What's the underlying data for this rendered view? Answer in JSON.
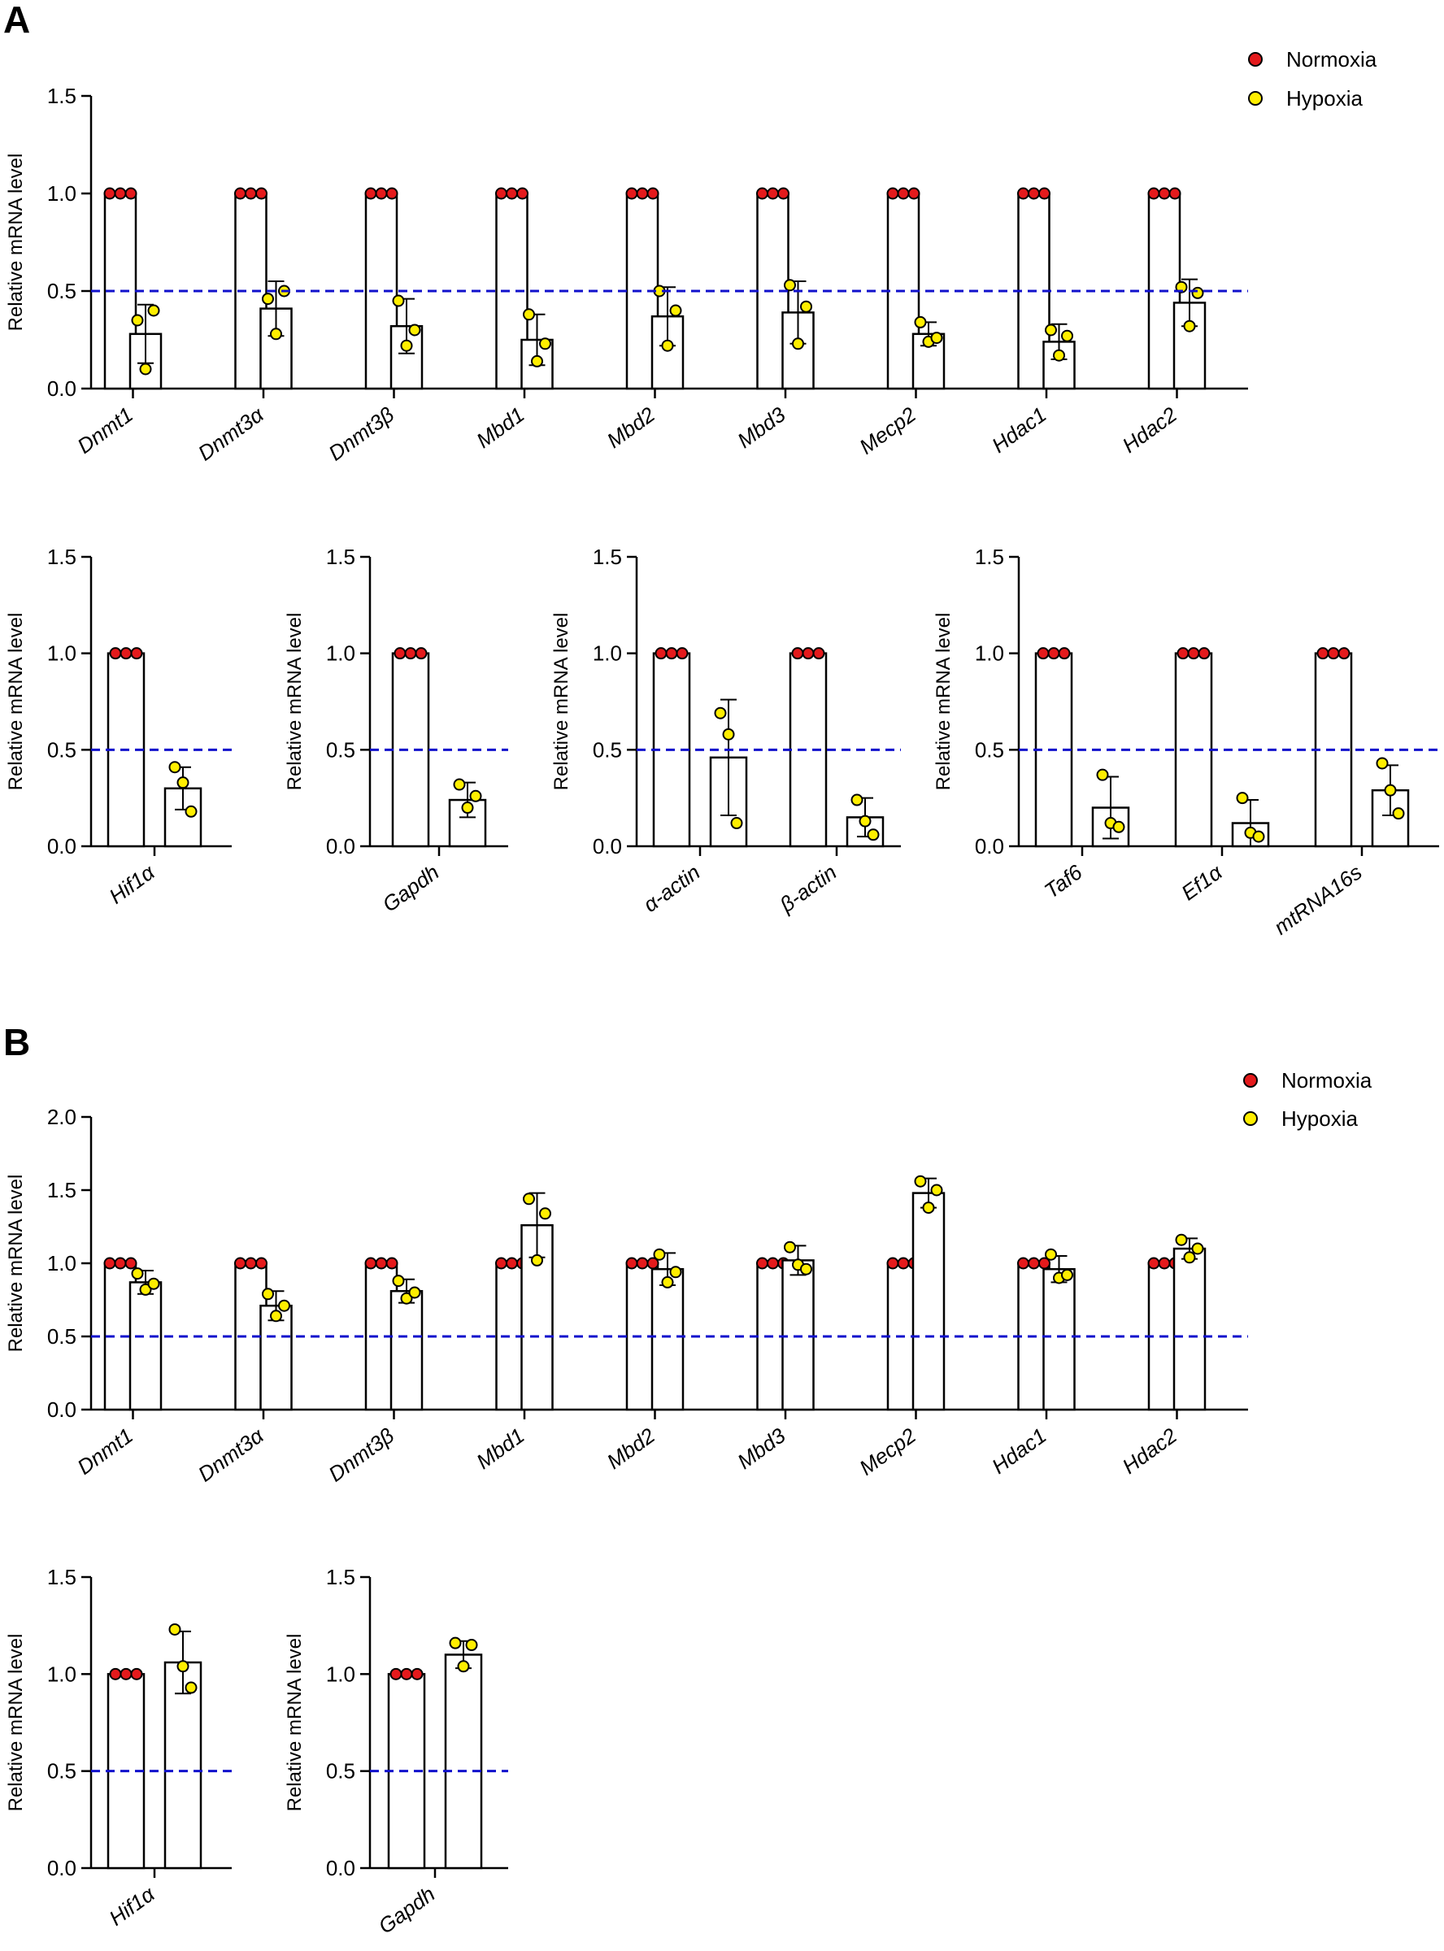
{
  "panels": {
    "a": "A",
    "b": "B"
  },
  "legend": [
    {
      "label": "Normoxia",
      "color": "#e41a1c"
    },
    {
      "label": "Hypoxia",
      "color": "#ffee00"
    }
  ],
  "colors": {
    "reference_line": "#1010cc",
    "bar_fill": "#ffffff",
    "bar_stroke": "#000000"
  },
  "chart_data": [
    {
      "id": "A-top",
      "type": "bar",
      "panel": "A",
      "ylabel": "Relative mRNA level",
      "ylim": [
        0,
        1.5
      ],
      "yticks": [
        "0.0",
        "0.5",
        "1.0",
        "1.5"
      ],
      "reference_line": 0.5,
      "categories": [
        "Dnmt1",
        "Dnmt3α",
        "Dnmt3β",
        "Mbd1",
        "Mbd2",
        "Mbd3",
        "Mecp2",
        "Hdac1",
        "Hdac2"
      ],
      "series": [
        {
          "name": "Normoxia",
          "values": [
            1,
            1,
            1,
            1,
            1,
            1,
            1,
            1,
            1
          ],
          "sd": [
            0,
            0,
            0,
            0,
            0,
            0,
            0,
            0,
            0
          ],
          "points": [
            [
              1,
              1,
              1
            ],
            [
              1,
              1,
              1
            ],
            [
              1,
              1,
              1
            ],
            [
              1,
              1,
              1
            ],
            [
              1,
              1,
              1
            ],
            [
              1,
              1,
              1
            ],
            [
              1,
              1,
              1
            ],
            [
              1,
              1,
              1
            ],
            [
              1,
              1,
              1
            ]
          ]
        },
        {
          "name": "Hypoxia",
          "values": [
            0.28,
            0.41,
            0.32,
            0.25,
            0.37,
            0.39,
            0.28,
            0.24,
            0.44
          ],
          "sd": [
            0.15,
            0.14,
            0.14,
            0.13,
            0.15,
            0.16,
            0.06,
            0.09,
            0.12
          ],
          "points": [
            [
              0.35,
              0.1,
              0.4
            ],
            [
              0.46,
              0.28,
              0.5
            ],
            [
              0.45,
              0.22,
              0.3
            ],
            [
              0.38,
              0.14,
              0.23
            ],
            [
              0.5,
              0.22,
              0.4
            ],
            [
              0.53,
              0.23,
              0.42
            ],
            [
              0.34,
              0.24,
              0.26
            ],
            [
              0.3,
              0.17,
              0.27
            ],
            [
              0.52,
              0.32,
              0.49
            ]
          ]
        }
      ]
    },
    {
      "id": "A-hif",
      "type": "bar",
      "panel": "A",
      "ylabel": "Relative mRNA level",
      "ylim": [
        0,
        1.5
      ],
      "yticks": [
        "0.0",
        "0.5",
        "1.0",
        "1.5"
      ],
      "reference_line": 0.5,
      "categories": [
        "Hif1α"
      ],
      "series": [
        {
          "name": "Normoxia",
          "values": [
            1
          ],
          "sd": [
            0
          ],
          "points": [
            [
              1,
              1,
              1
            ]
          ]
        },
        {
          "name": "Hypoxia",
          "values": [
            0.3
          ],
          "sd": [
            0.11
          ],
          "points": [
            [
              0.41,
              0.33,
              0.18
            ]
          ]
        }
      ]
    },
    {
      "id": "A-gapdh",
      "type": "bar",
      "panel": "A",
      "ylabel": "Relative mRNA level",
      "ylim": [
        0,
        1.5
      ],
      "yticks": [
        "0.0",
        "0.5",
        "1.0",
        "1.5"
      ],
      "reference_line": 0.5,
      "categories": [
        "Gapdh"
      ],
      "series": [
        {
          "name": "Normoxia",
          "values": [
            1
          ],
          "sd": [
            0
          ],
          "points": [
            [
              1,
              1,
              1
            ]
          ]
        },
        {
          "name": "Hypoxia",
          "values": [
            0.24
          ],
          "sd": [
            0.09
          ],
          "points": [
            [
              0.32,
              0.2,
              0.26
            ]
          ]
        }
      ]
    },
    {
      "id": "A-actin",
      "type": "bar",
      "panel": "A",
      "ylabel": "Relative mRNA level",
      "ylim": [
        0,
        1.5
      ],
      "yticks": [
        "0.0",
        "0.5",
        "1.0",
        "1.5"
      ],
      "reference_line": 0.5,
      "categories": [
        "α-actin",
        "β-actin"
      ],
      "series": [
        {
          "name": "Normoxia",
          "values": [
            1,
            1
          ],
          "sd": [
            0,
            0
          ],
          "points": [
            [
              1,
              1,
              1
            ],
            [
              1,
              1,
              1
            ]
          ]
        },
        {
          "name": "Hypoxia",
          "values": [
            0.46,
            0.15
          ],
          "sd": [
            0.3,
            0.1
          ],
          "points": [
            [
              0.69,
              0.58,
              0.12
            ],
            [
              0.24,
              0.13,
              0.06
            ]
          ]
        }
      ]
    },
    {
      "id": "A-ref",
      "type": "bar",
      "panel": "A",
      "ylabel": "Relative mRNA level",
      "ylim": [
        0,
        1.5
      ],
      "yticks": [
        "0.0",
        "0.5",
        "1.0",
        "1.5"
      ],
      "reference_line": 0.5,
      "categories": [
        "Taf6",
        "Ef1α",
        "mtRNA16s"
      ],
      "series": [
        {
          "name": "Normoxia",
          "values": [
            1,
            1,
            1
          ],
          "sd": [
            0,
            0,
            0
          ],
          "points": [
            [
              1,
              1,
              1
            ],
            [
              1,
              1,
              1
            ],
            [
              1,
              1,
              1
            ]
          ]
        },
        {
          "name": "Hypoxia",
          "values": [
            0.2,
            0.12,
            0.29
          ],
          "sd": [
            0.16,
            0.12,
            0.13
          ],
          "points": [
            [
              0.37,
              0.12,
              0.1
            ],
            [
              0.25,
              0.07,
              0.05
            ],
            [
              0.43,
              0.29,
              0.17
            ]
          ]
        }
      ]
    },
    {
      "id": "B-top",
      "type": "bar",
      "panel": "B",
      "ylabel": "Relative mRNA level",
      "ylim": [
        0,
        2.0
      ],
      "yticks": [
        "0.0",
        "0.5",
        "1.0",
        "1.5",
        "2.0"
      ],
      "reference_line": 0.5,
      "categories": [
        "Dnmt1",
        "Dnmt3α",
        "Dnmt3β",
        "Mbd1",
        "Mbd2",
        "Mbd3",
        "Mecp2",
        "Hdac1",
        "Hdac2"
      ],
      "series": [
        {
          "name": "Normoxia",
          "values": [
            1,
            1,
            1,
            1,
            1,
            1,
            1,
            1,
            1
          ],
          "sd": [
            0,
            0,
            0,
            0,
            0,
            0,
            0,
            0,
            0
          ],
          "points": [
            [
              1,
              1,
              1
            ],
            [
              1,
              1,
              1
            ],
            [
              1,
              1,
              1
            ],
            [
              1,
              1,
              1
            ],
            [
              1,
              1,
              1
            ],
            [
              1,
              1,
              1
            ],
            [
              1,
              1,
              1
            ],
            [
              1,
              1,
              1
            ],
            [
              1,
              1,
              1
            ]
          ]
        },
        {
          "name": "Hypoxia",
          "values": [
            0.87,
            0.71,
            0.81,
            1.26,
            0.96,
            1.02,
            1.48,
            0.96,
            1.1
          ],
          "sd": [
            0.08,
            0.1,
            0.08,
            0.22,
            0.11,
            0.1,
            0.1,
            0.09,
            0.07
          ],
          "points": [
            [
              0.93,
              0.82,
              0.86
            ],
            [
              0.79,
              0.64,
              0.71
            ],
            [
              0.88,
              0.76,
              0.8
            ],
            [
              1.44,
              1.02,
              1.34
            ],
            [
              1.06,
              0.87,
              0.94
            ],
            [
              1.11,
              0.99,
              0.96
            ],
            [
              1.56,
              1.38,
              1.5
            ],
            [
              1.06,
              0.9,
              0.92
            ],
            [
              1.16,
              1.04,
              1.1
            ]
          ]
        }
      ]
    },
    {
      "id": "B-hif",
      "type": "bar",
      "panel": "B",
      "ylabel": "Relative mRNA level",
      "ylim": [
        0,
        1.5
      ],
      "yticks": [
        "0.0",
        "0.5",
        "1.0",
        "1.5"
      ],
      "reference_line": 0.5,
      "categories": [
        "Hif1α"
      ],
      "series": [
        {
          "name": "Normoxia",
          "values": [
            1
          ],
          "sd": [
            0
          ],
          "points": [
            [
              1,
              1,
              1
            ]
          ]
        },
        {
          "name": "Hypoxia",
          "values": [
            1.06
          ],
          "sd": [
            0.16
          ],
          "points": [
            [
              1.23,
              1.04,
              0.93
            ]
          ]
        }
      ]
    },
    {
      "id": "B-gapdh",
      "type": "bar",
      "panel": "B",
      "ylabel": "Relative mRNA level",
      "ylim": [
        0,
        1.5
      ],
      "yticks": [
        "0.0",
        "0.5",
        "1.0",
        "1.5"
      ],
      "reference_line": 0.5,
      "categories": [
        "Gapdh"
      ],
      "series": [
        {
          "name": "Normoxia",
          "values": [
            1
          ],
          "sd": [
            0
          ],
          "points": [
            [
              1,
              1,
              1
            ]
          ]
        },
        {
          "name": "Hypoxia",
          "values": [
            1.1
          ],
          "sd": [
            0.07
          ],
          "points": [
            [
              1.16,
              1.04,
              1.15
            ]
          ]
        }
      ]
    }
  ]
}
